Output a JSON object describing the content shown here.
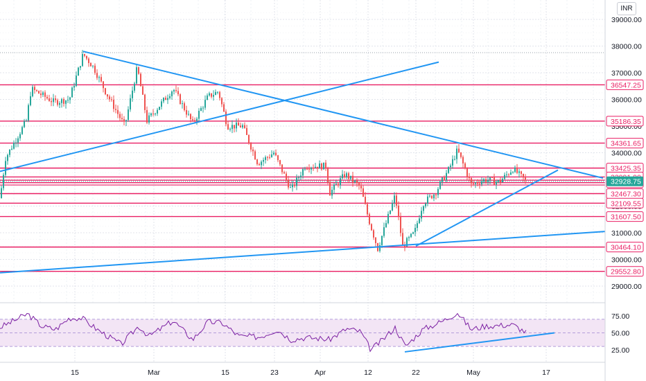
{
  "currency": "INR",
  "colors": {
    "up": "#26a69a",
    "down": "#ef5350",
    "level_line": "#e91e63",
    "trend_line": "#2196f3",
    "current_price": "#26a69a",
    "rsi_line": "#7b1fa2",
    "rsi_band": "#f3e5f5",
    "grid": "#e0e3eb",
    "axis_text": "#131722"
  },
  "chart_data": [
    {
      "type": "candlestick",
      "y_ticks": [
        "29000.00",
        "30000.00",
        "31000.00",
        "32000.00",
        "33000.00",
        "34000.00",
        "35000.00",
        "36000.00",
        "37000.00",
        "38000.00",
        "39000.00"
      ],
      "x_ticks": [
        "15",
        "Mar",
        "15",
        "23",
        "Apr",
        "12",
        "22",
        "May",
        "17"
      ],
      "ylim": [
        28600,
        39700
      ],
      "grid": true,
      "current_price": "32928.75",
      "horizontal_levels": [
        "36547.25",
        "35186.35",
        "34361.65",
        "33425.35",
        "33091.90",
        "32877.85",
        "32467.30",
        "32109.55",
        "31607.50",
        "30464.10",
        "29552.80"
      ],
      "unlabeled_levels": [
        32970,
        32790
      ]
    },
    {
      "type": "line",
      "series": [
        {
          "name": "",
          "values": []
        }
      ],
      "y_ticks": [
        "75.00",
        "50.00",
        "25.00"
      ],
      "ylim": [
        14,
        87
      ],
      "band": [
        30,
        70
      ],
      "midline": 50
    }
  ]
}
